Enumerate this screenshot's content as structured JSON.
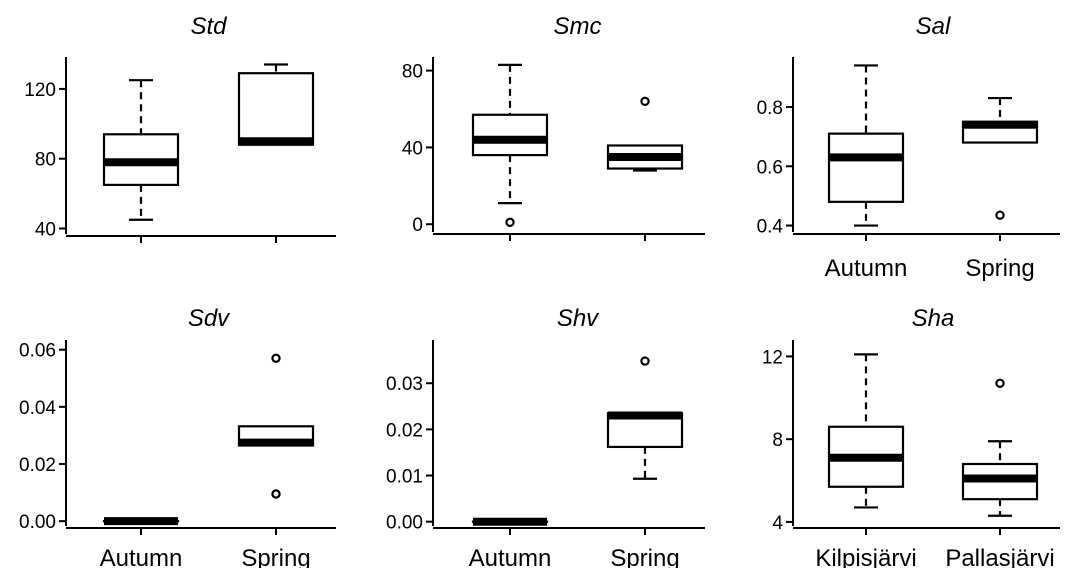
{
  "chart_data": [
    {
      "type": "box",
      "title": "Std",
      "categories": [
        "Autumn",
        "Spring"
      ],
      "show_category_labels": false,
      "yticks": [
        40,
        80,
        120
      ],
      "ylim": [
        38,
        136
      ],
      "boxes": [
        {
          "category": "Autumn",
          "whisker_low": 45,
          "q1": 65,
          "median": 78,
          "q3": 94,
          "whisker_high": 125,
          "outliers": []
        },
        {
          "category": "Spring",
          "whisker_low": 88,
          "q1": 88,
          "median": 90,
          "q3": 129,
          "whisker_high": 134,
          "outliers": []
        }
      ]
    },
    {
      "type": "box",
      "title": "Smc",
      "categories": [
        "Autumn",
        "Spring"
      ],
      "show_category_labels": false,
      "yticks": [
        0,
        40,
        80
      ],
      "ylim": [
        -3,
        85
      ],
      "boxes": [
        {
          "category": "Autumn",
          "whisker_low": 11,
          "q1": 36,
          "median": 44,
          "q3": 57,
          "whisker_high": 83,
          "outliers": [
            1
          ]
        },
        {
          "category": "Spring",
          "whisker_low": 28,
          "q1": 29,
          "median": 35,
          "q3": 41,
          "whisker_high": 41,
          "outliers": [
            64
          ]
        }
      ]
    },
    {
      "type": "box",
      "title": "Sal",
      "categories": [
        "Autumn",
        "Spring"
      ],
      "show_category_labels": true,
      "yticks": [
        0.4,
        0.6,
        0.8
      ],
      "ylim": [
        0.385,
        0.955
      ],
      "boxes": [
        {
          "category": "Autumn",
          "whisker_low": 0.4,
          "q1": 0.48,
          "median": 0.63,
          "q3": 0.71,
          "whisker_high": 0.94,
          "outliers": []
        },
        {
          "category": "Spring",
          "whisker_low": 0.68,
          "q1": 0.68,
          "median": 0.74,
          "q3": 0.75,
          "whisker_high": 0.83,
          "outliers": [
            0.435
          ]
        }
      ]
    },
    {
      "type": "box",
      "title": "Sdv",
      "categories": [
        "Autumn",
        "Spring"
      ],
      "show_category_labels": true,
      "yticks": [
        0.0,
        0.02,
        0.04,
        0.06
      ],
      "tick_decimals": 2,
      "ylim": [
        -0.001,
        0.062
      ],
      "boxes": [
        {
          "category": "Autumn",
          "whisker_low": 0.0,
          "q1": 0.0,
          "median": 0.0,
          "q3": 0.0,
          "whisker_high": 0.0,
          "outliers": []
        },
        {
          "category": "Spring",
          "whisker_low": 0.0265,
          "q1": 0.0265,
          "median": 0.0275,
          "q3": 0.0332,
          "whisker_high": 0.0332,
          "outliers": [
            0.057,
            0.0095
          ]
        }
      ]
    },
    {
      "type": "box",
      "title": "Shv",
      "categories": [
        "Autumn",
        "Spring"
      ],
      "show_category_labels": true,
      "yticks": [
        0.0,
        0.01,
        0.02,
        0.03
      ],
      "tick_decimals": 2,
      "ylim": [
        -0.0005,
        0.0385
      ],
      "boxes": [
        {
          "category": "Autumn",
          "whisker_low": 0.0,
          "q1": 0.0,
          "median": 0.0,
          "q3": 0.0,
          "whisker_high": 0.0,
          "outliers": []
        },
        {
          "category": "Spring",
          "whisker_low": 0.0093,
          "q1": 0.0162,
          "median": 0.023,
          "q3": 0.0235,
          "whisker_high": 0.0235,
          "outliers": [
            0.0348
          ]
        }
      ]
    },
    {
      "type": "box",
      "title": "Sha",
      "categories": [
        "Kilpisjärvi",
        "Pallasjärvi"
      ],
      "show_category_labels": true,
      "yticks": [
        4,
        8,
        12
      ],
      "ylim": [
        3.9,
        12.6
      ],
      "boxes": [
        {
          "category": "Kilpisjärvi",
          "whisker_low": 4.7,
          "q1": 5.7,
          "median": 7.1,
          "q3": 8.6,
          "whisker_high": 12.1,
          "outliers": []
        },
        {
          "category": "Pallasjärvi",
          "whisker_low": 4.3,
          "q1": 5.1,
          "median": 6.1,
          "q3": 6.8,
          "whisker_high": 7.9,
          "outliers": [
            10.7
          ]
        }
      ]
    }
  ]
}
